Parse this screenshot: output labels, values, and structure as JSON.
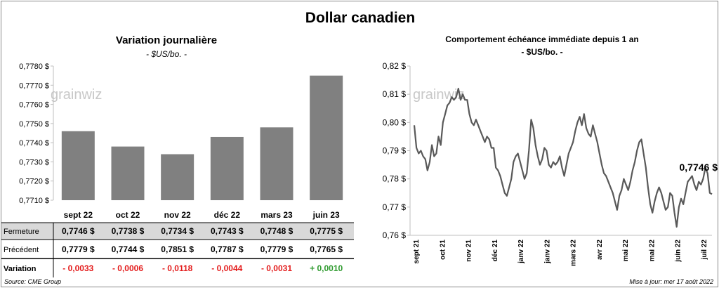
{
  "title": "Dollar canadien",
  "left": {
    "title": "Variation  journalière",
    "unit": "- $US/bo. -",
    "watermark": "grainwiz",
    "ylim": [
      0.771,
      0.778
    ],
    "yticks": [
      "0,7780 $",
      "0,7770 $",
      "0,7760 $",
      "0,7750 $",
      "0,7740 $",
      "0,7730 $",
      "0,7720 $",
      "0,7710 $"
    ],
    "ytick_values": [
      0.778,
      0.777,
      0.776,
      0.775,
      0.774,
      0.773,
      0.772,
      0.771
    ],
    "bar_color": "#808080"
  },
  "table": {
    "rows": [
      {
        "label": "Fermeture",
        "values": [
          "0,7746 $",
          "0,7738 $",
          "0,7734 $",
          "0,7743 $",
          "0,7748 $",
          "0,7775 $"
        ]
      },
      {
        "label": "Précédent",
        "values": [
          "0,7779 $",
          "0,7744 $",
          "0,7851 $",
          "0,7787 $",
          "0,7779 $",
          "0,7765 $"
        ]
      },
      {
        "label": "Variation",
        "values": [
          "- 0,0033",
          "- 0,0006",
          "- 0,0118",
          "- 0,0044",
          "- 0,0031",
          "+ 0,0010"
        ]
      }
    ],
    "negative_color": "#e31b1b",
    "positive_color": "#2e9a2e",
    "header_bg": "#d9d9d9"
  },
  "right": {
    "title": "Comportement échéance immédiate depuis 1 an",
    "unit": "- $US/bo. -",
    "watermark": "grainwiz",
    "last_label": "0,7746 $",
    "ylim": [
      0.76,
      0.82
    ],
    "yticks": [
      "0,82 $",
      "0,81 $",
      "0,80 $",
      "0,79 $",
      "0,78 $",
      "0,77 $",
      "0,76 $"
    ],
    "ytick_values": [
      0.82,
      0.81,
      0.8,
      0.79,
      0.78,
      0.77,
      0.76
    ],
    "xticks": [
      "sept 21",
      "oct 21",
      "nov 21",
      "déc 21",
      "janv 22",
      "janv 22",
      "mars 22",
      "avr 22",
      "mai 22",
      "mai 22",
      "juin 22",
      "juil 22"
    ],
    "line_color": "#595959"
  },
  "footer": {
    "source": "Source: CME Group",
    "update": "Mise à jour: mer 17 août 2022"
  },
  "chart_data": [
    {
      "type": "bar",
      "title": "Variation  journalière",
      "ylabel": "- $US/bo. -",
      "categories": [
        "sept 22",
        "oct 22",
        "nov 22",
        "déc 22",
        "mars 23",
        "juin 23"
      ],
      "values": [
        0.7746,
        0.7738,
        0.7734,
        0.7743,
        0.7748,
        0.7775
      ],
      "ylim": [
        0.771,
        0.778
      ]
    },
    {
      "type": "line",
      "title": "Comportement échéance immédiate depuis 1 an",
      "ylabel": "- $US/bo. -",
      "ylim": [
        0.76,
        0.82
      ],
      "x_start": "2021-08-17",
      "x_end": "2022-08-17",
      "values": [
        0.799,
        0.791,
        0.789,
        0.79,
        0.788,
        0.787,
        0.783,
        0.786,
        0.792,
        0.788,
        0.789,
        0.795,
        0.792,
        0.8,
        0.803,
        0.806,
        0.807,
        0.809,
        0.808,
        0.809,
        0.812,
        0.808,
        0.81,
        0.808,
        0.808,
        0.803,
        0.8,
        0.799,
        0.801,
        0.799,
        0.797,
        0.795,
        0.793,
        0.795,
        0.794,
        0.791,
        0.791,
        0.784,
        0.783,
        0.781,
        0.778,
        0.775,
        0.774,
        0.777,
        0.78,
        0.786,
        0.788,
        0.789,
        0.786,
        0.783,
        0.78,
        0.782,
        0.79,
        0.801,
        0.798,
        0.792,
        0.788,
        0.785,
        0.787,
        0.791,
        0.79,
        0.785,
        0.784,
        0.786,
        0.785,
        0.786,
        0.788,
        0.784,
        0.781,
        0.785,
        0.789,
        0.791,
        0.793,
        0.797,
        0.8,
        0.802,
        0.799,
        0.803,
        0.798,
        0.796,
        0.795,
        0.799,
        0.796,
        0.793,
        0.789,
        0.785,
        0.782,
        0.781,
        0.779,
        0.777,
        0.775,
        0.772,
        0.769,
        0.774,
        0.776,
        0.78,
        0.778,
        0.776,
        0.779,
        0.783,
        0.786,
        0.79,
        0.793,
        0.794,
        0.789,
        0.784,
        0.777,
        0.771,
        0.768,
        0.772,
        0.775,
        0.777,
        0.775,
        0.772,
        0.769,
        0.77,
        0.775,
        0.774,
        0.768,
        0.763,
        0.77,
        0.773,
        0.771,
        0.775,
        0.779,
        0.78,
        0.781,
        0.778,
        0.776,
        0.779,
        0.778,
        0.78,
        0.784,
        0.782,
        0.775,
        0.7746
      ]
    }
  ]
}
